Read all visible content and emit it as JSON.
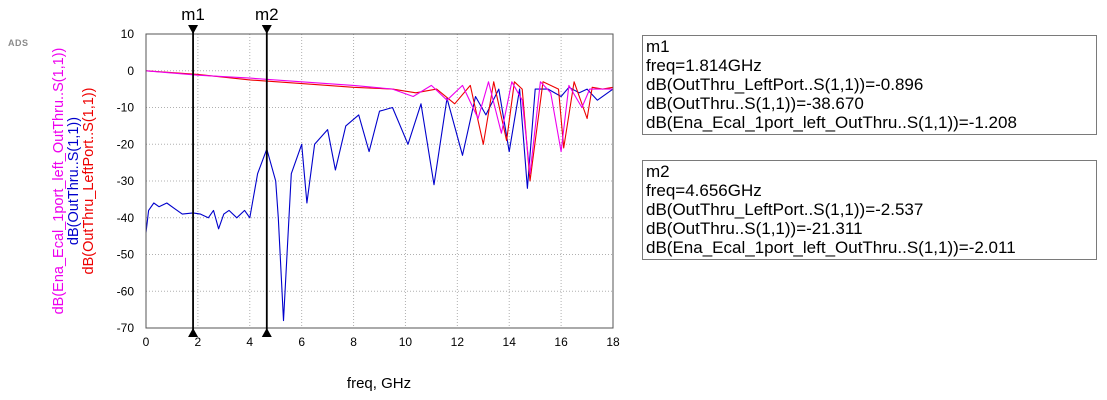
{
  "app_badge": "ADS",
  "chart_data": {
    "type": "line",
    "xlabel": "freq, GHz",
    "xlim": [
      0,
      18
    ],
    "ylim": [
      -70,
      10
    ],
    "xticks": [
      0,
      2,
      4,
      6,
      8,
      10,
      12,
      14,
      16,
      18
    ],
    "yticks": [
      10,
      0,
      -10,
      -20,
      -30,
      -40,
      -50,
      -60,
      -70
    ],
    "grid": true,
    "ylabels": [
      {
        "text": "dB(Ena_Ecal_1port_left_OutThru..S(1,1))",
        "color": "#ee00ee"
      },
      {
        "text": "dB(OutThru..S(1,1))",
        "color": "#0000cc"
      },
      {
        "text": "dB(OutThru_LeftPort..S(1,1))",
        "color": "#ee0000"
      }
    ],
    "series": [
      {
        "name": "dB(OutThru..S(1,1))",
        "color": "#0000cc",
        "x": [
          0,
          0.1,
          0.3,
          0.5,
          0.8,
          1.1,
          1.4,
          1.814,
          2.1,
          2.4,
          2.6,
          2.8,
          3.0,
          3.2,
          3.5,
          3.8,
          4.0,
          4.3,
          4.656,
          5.0,
          5.1,
          5.3,
          5.6,
          6.0,
          6.2,
          6.5,
          7.0,
          7.3,
          7.7,
          8.2,
          8.6,
          9.0,
          9.5,
          10.1,
          10.6,
          11.1,
          11.6,
          12.2,
          12.7,
          13.1,
          13.6,
          14.0,
          14.4,
          14.7,
          15.0,
          15.5,
          16.0,
          16.3,
          16.7,
          17.0,
          17.4,
          18.0
        ],
        "y": [
          -44,
          -38,
          -36,
          -37,
          -36,
          -37.5,
          -39,
          -38.67,
          -39,
          -40,
          -38,
          -43,
          -39,
          -38,
          -40,
          -38,
          -40,
          -28,
          -21.311,
          -30,
          -40,
          -68,
          -28,
          -20,
          -36,
          -20,
          -16,
          -27,
          -15,
          -12,
          -22,
          -11,
          -10,
          -20,
          -9,
          -31,
          -7.5,
          -23,
          -7,
          -12,
          -5,
          -22,
          -5,
          -32,
          -5,
          -5,
          -7,
          -4.5,
          -6,
          -5,
          -8,
          -5
        ]
      },
      {
        "name": "dB(OutThru_LeftPort..S(1,1))",
        "color": "#ee0000",
        "x": [
          0,
          2,
          4,
          6,
          8,
          9.5,
          10.4,
          11.2,
          11.9,
          12.5,
          13.0,
          13.4,
          13.9,
          14.2,
          14.5,
          14.8,
          15.3,
          15.9,
          16.1,
          16.5,
          17.0,
          17.2,
          17.6,
          18.0
        ],
        "y": [
          0,
          -1,
          -2.5,
          -3.5,
          -4.5,
          -5,
          -6,
          -5,
          -9,
          -4,
          -20,
          -3,
          -19,
          -3,
          -5,
          -30,
          -3,
          -5,
          -21,
          -3,
          -13,
          -4.5,
          -5,
          -4.5
        ]
      },
      {
        "name": "dB(Ena_Ecal_1port_left_OutThru..S(1,1))",
        "color": "#ee00ee",
        "x": [
          0,
          2,
          4,
          6,
          8,
          9.5,
          10.3,
          11.0,
          11.6,
          12.2,
          12.8,
          13.2,
          13.7,
          14.1,
          14.5,
          14.8,
          15.2,
          15.6,
          16.0,
          16.3,
          16.8,
          17.1,
          17.5,
          18.0
        ],
        "y": [
          0,
          -1.208,
          -2,
          -3,
          -4,
          -5,
          -7,
          -4,
          -8,
          -4,
          -13,
          -3,
          -17,
          -3,
          -8,
          -28,
          -3,
          -6,
          -22,
          -4,
          -10,
          -5,
          -5,
          -5
        ]
      }
    ],
    "markers": [
      {
        "name": "m1",
        "freq": 1.814
      },
      {
        "name": "m2",
        "freq": 4.656
      }
    ]
  },
  "marker_boxes": {
    "m1": {
      "title": "m1",
      "freq": "freq=1.814GHz",
      "line1": "dB(OutThru_LeftPort..S(1,1))=-0.896",
      "line2": "dB(OutThru..S(1,1))=-38.670",
      "line3": "dB(Ena_Ecal_1port_left_OutThru..S(1,1))=-1.208"
    },
    "m2": {
      "title": "m2",
      "freq": "freq=4.656GHz",
      "line1": "dB(OutThru_LeftPort..S(1,1))=-2.537",
      "line2": "dB(OutThru..S(1,1))=-21.311",
      "line3": "dB(Ena_Ecal_1port_left_OutThru..S(1,1))=-2.011"
    }
  }
}
